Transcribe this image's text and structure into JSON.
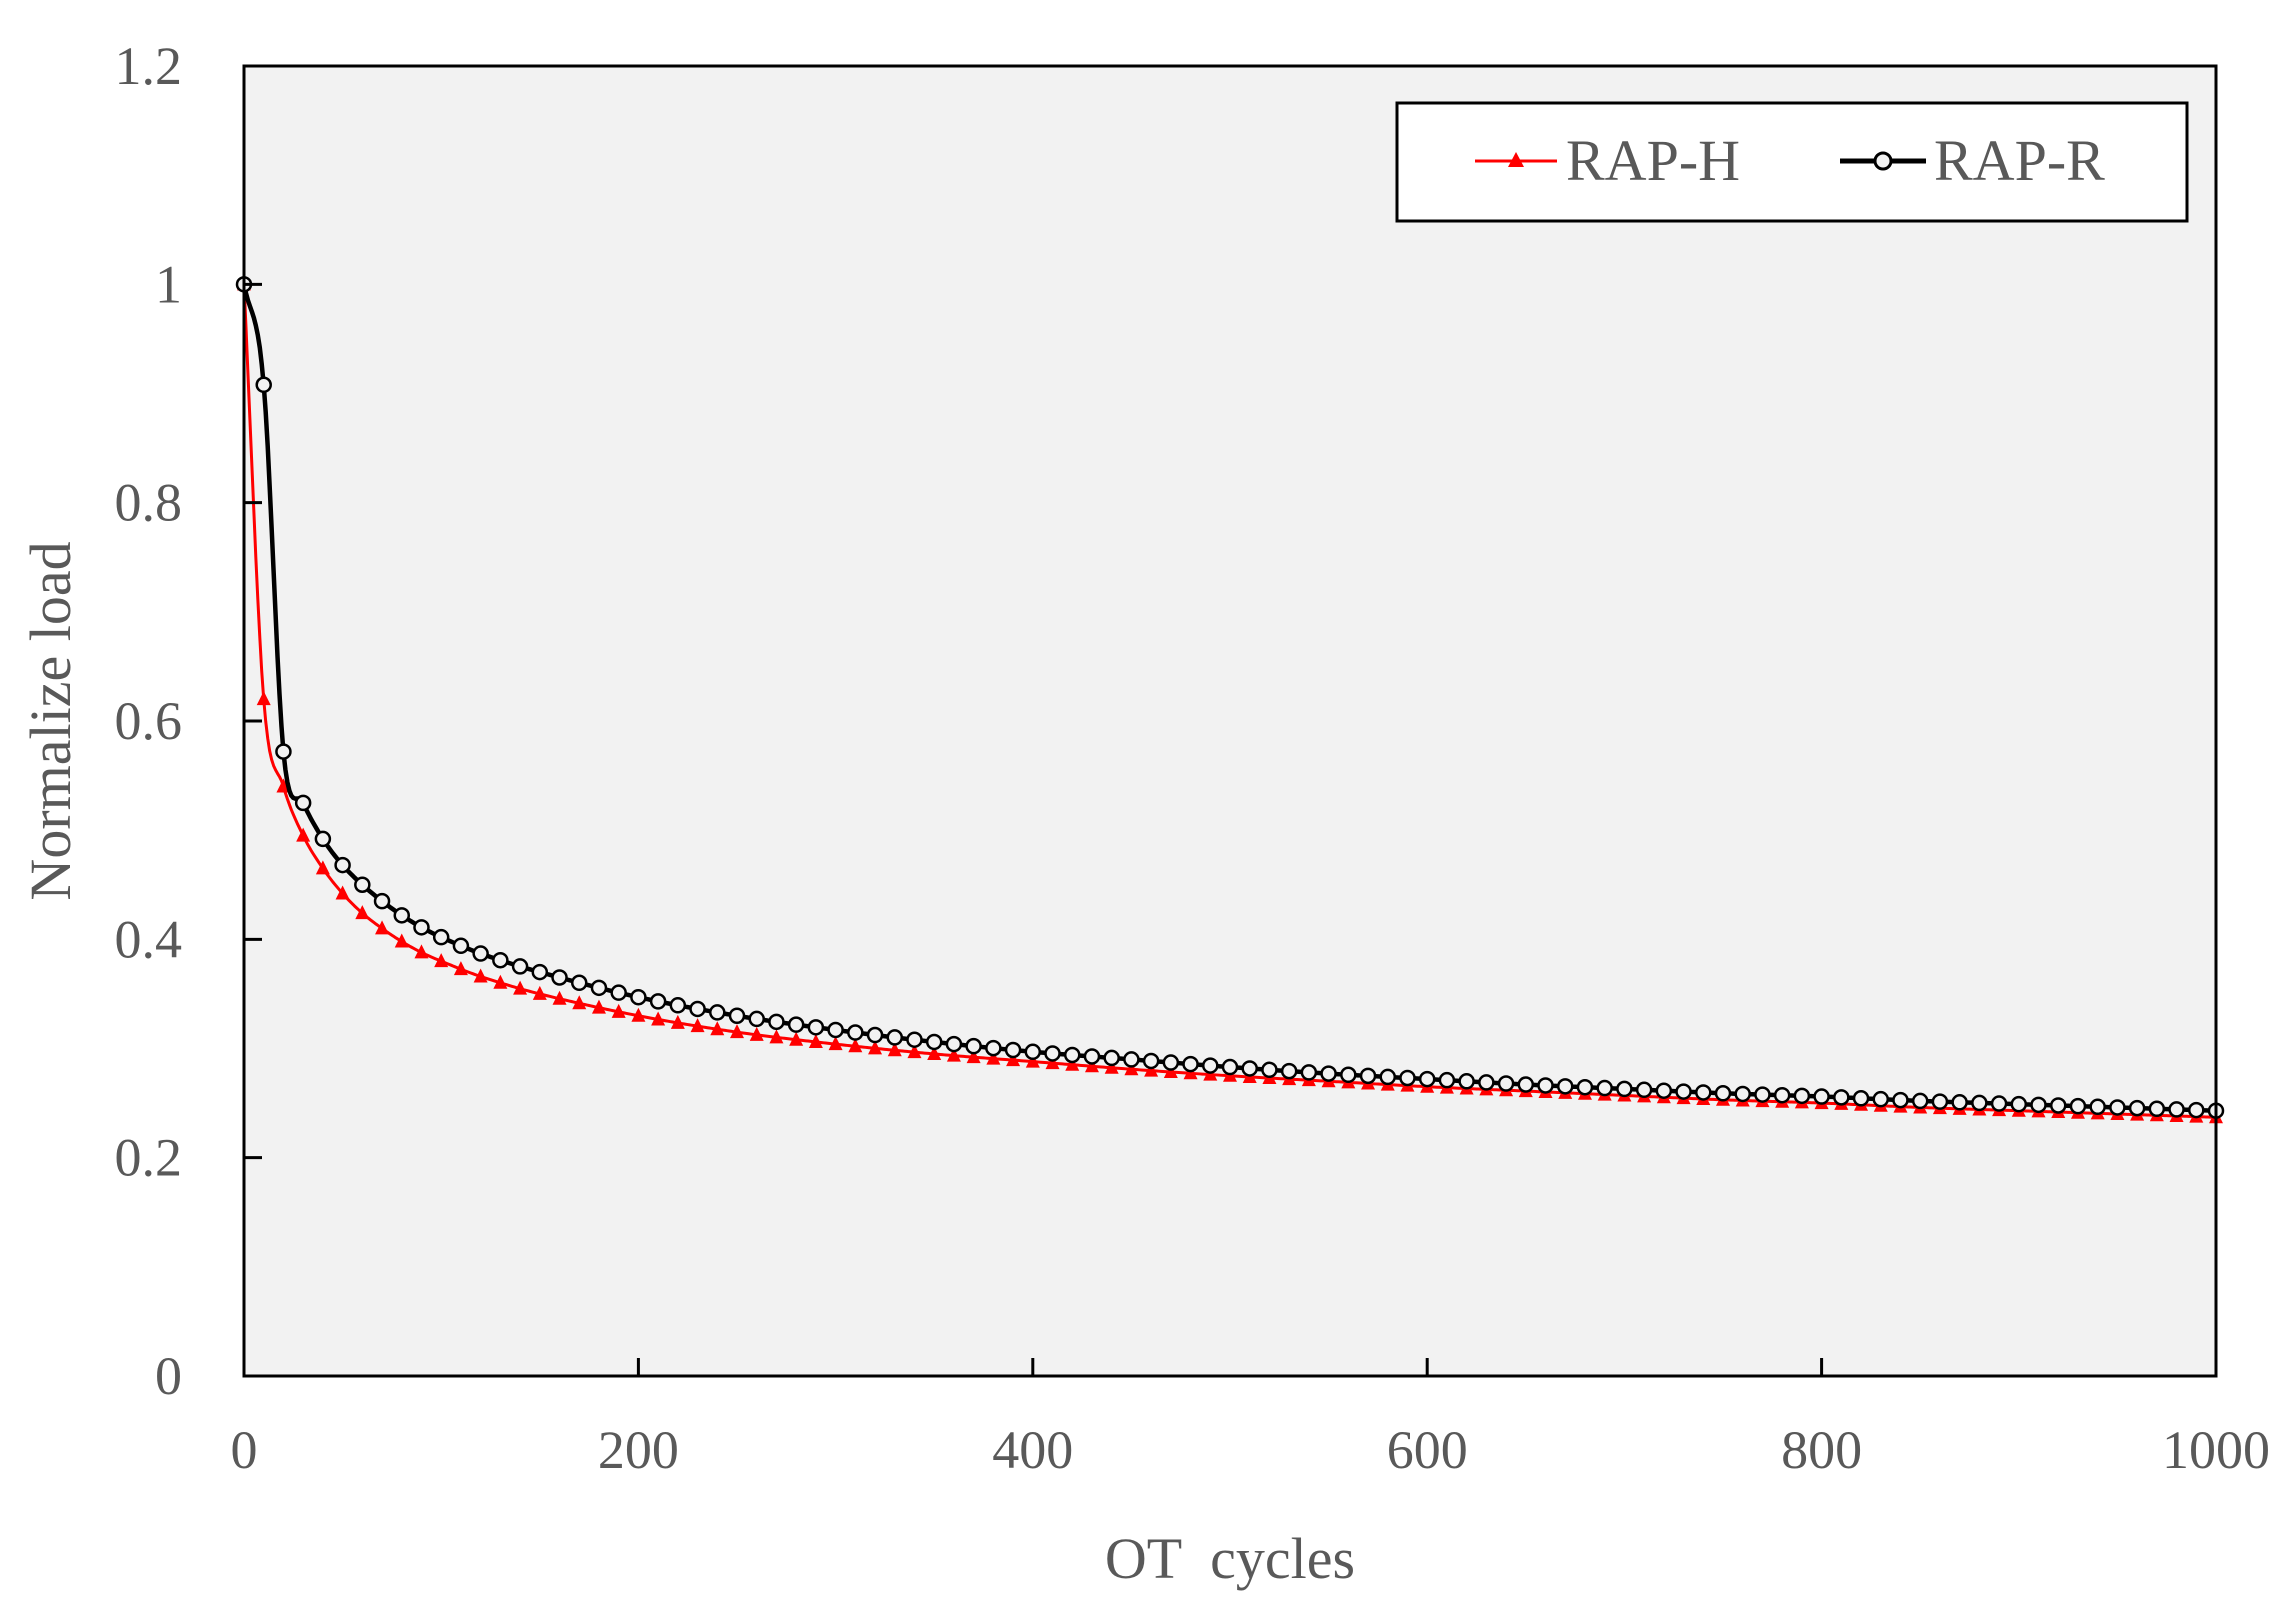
{
  "chart_data": {
    "type": "line",
    "title": "",
    "xlabel": "OT  cycles",
    "ylabel": "Normalize load",
    "xlim": [
      0,
      1000
    ],
    "ylim": [
      0,
      1.2
    ],
    "x_ticks": [
      0,
      200,
      400,
      600,
      800,
      1000
    ],
    "y_ticks": [
      0,
      0.2,
      0.4,
      0.6,
      0.8,
      1,
      1.2
    ],
    "x_tick_labels": [
      "0",
      "200",
      "400",
      "600",
      "800",
      "1000"
    ],
    "y_tick_labels": [
      "0",
      "0.2",
      "0.4",
      "0.6",
      "0.8",
      "1",
      "1.2"
    ],
    "grid": false,
    "plot_background": "#f2f2f2",
    "legend_position": "top-right",
    "series": [
      {
        "name": "RAP-H",
        "color": "#ff0000",
        "marker": "triangle",
        "x": [
          0,
          10,
          20,
          30,
          40,
          50,
          60,
          70,
          80,
          90,
          100,
          120,
          150,
          200,
          250,
          300,
          350,
          400,
          450,
          500,
          550,
          600,
          650,
          700,
          750,
          800,
          850,
          900,
          950,
          1000
        ],
        "y": [
          1.0,
          0.62,
          0.54,
          0.495,
          0.465,
          0.442,
          0.424,
          0.41,
          0.398,
          0.388,
          0.38,
          0.366,
          0.35,
          0.33,
          0.315,
          0.304,
          0.295,
          0.288,
          0.281,
          0.275,
          0.27,
          0.265,
          0.261,
          0.257,
          0.253,
          0.25,
          0.246,
          0.243,
          0.24,
          0.237
        ]
      },
      {
        "name": "RAP-R",
        "color": "#000000",
        "marker": "circle",
        "x": [
          0,
          10,
          20,
          30,
          40,
          50,
          60,
          70,
          80,
          90,
          100,
          120,
          150,
          200,
          250,
          300,
          350,
          400,
          450,
          500,
          550,
          600,
          650,
          700,
          750,
          800,
          850,
          900,
          950,
          1000
        ],
        "y": [
          1.0,
          0.908,
          0.572,
          0.525,
          0.492,
          0.468,
          0.45,
          0.435,
          0.422,
          0.411,
          0.402,
          0.387,
          0.37,
          0.347,
          0.33,
          0.317,
          0.306,
          0.297,
          0.29,
          0.283,
          0.277,
          0.272,
          0.267,
          0.263,
          0.259,
          0.256,
          0.252,
          0.249,
          0.246,
          0.243
        ]
      }
    ]
  }
}
